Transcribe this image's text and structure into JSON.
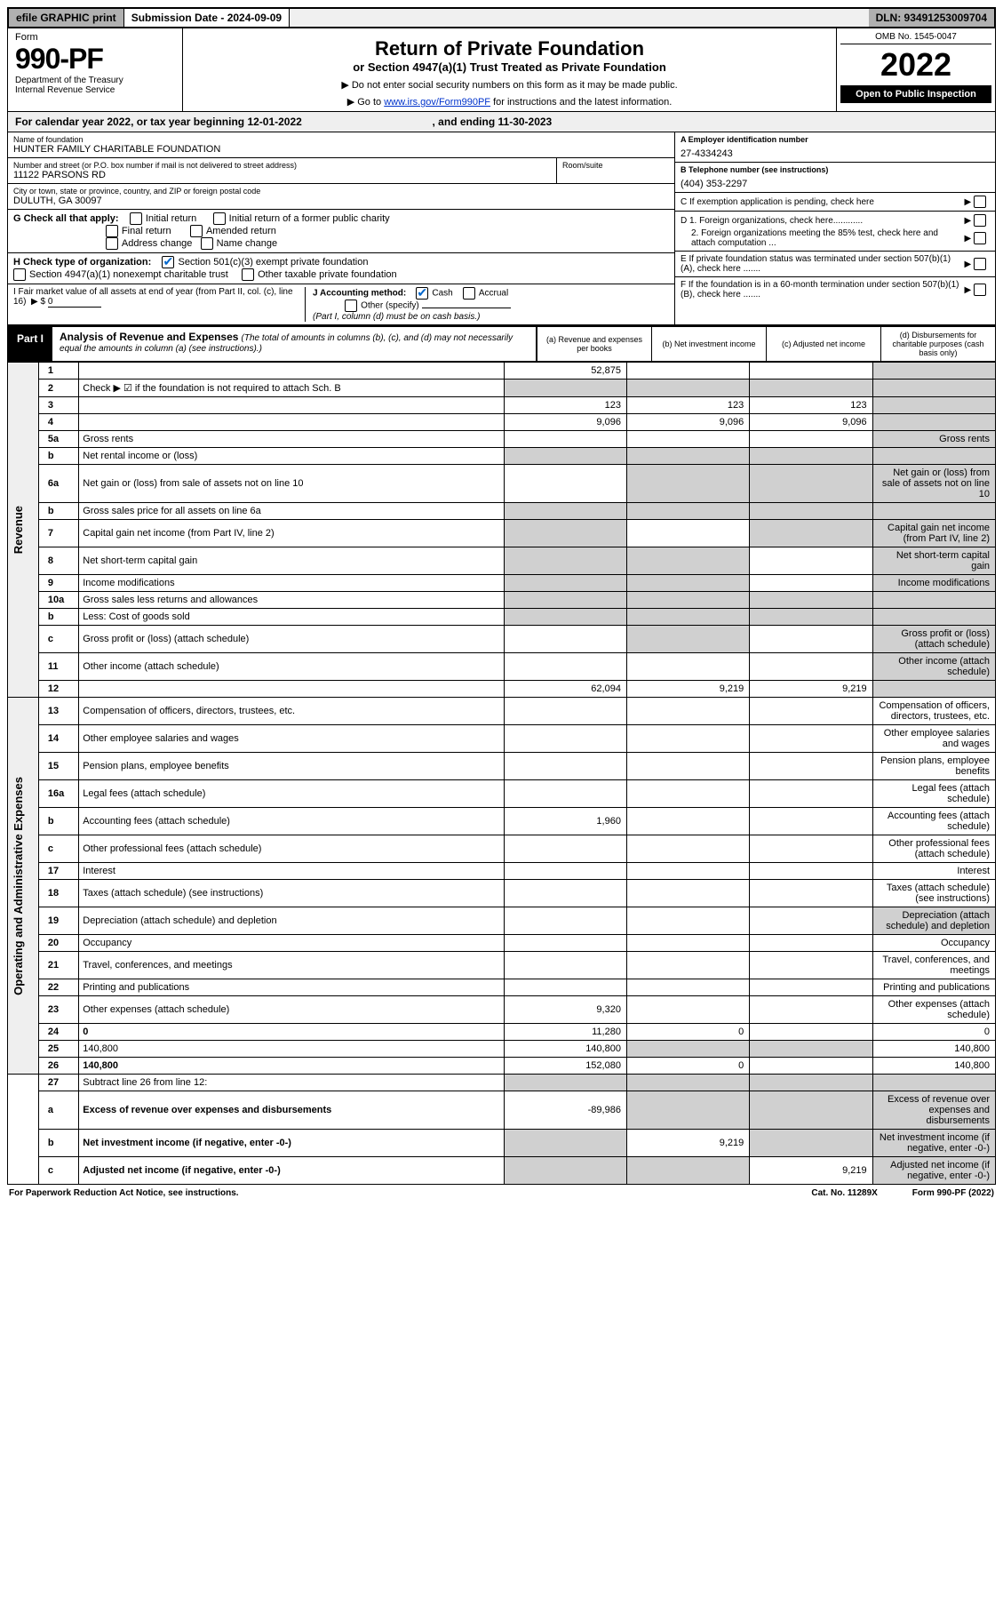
{
  "topbar": {
    "efile": "efile GRAPHIC print",
    "submission": "Submission Date - 2024-09-09",
    "dln": "DLN: 93491253009704"
  },
  "header": {
    "form_label": "Form",
    "form_number": "990-PF",
    "dept1": "Department of the Treasury",
    "dept2": "Internal Revenue Service",
    "title": "Return of Private Foundation",
    "subtitle": "or Section 4947(a)(1) Trust Treated as Private Foundation",
    "inst1": "▶ Do not enter social security numbers on this form as it may be made public.",
    "inst2_pre": "▶ Go to ",
    "inst2_link": "www.irs.gov/Form990PF",
    "inst2_post": " for instructions and the latest information.",
    "omb": "OMB No. 1545-0047",
    "year": "2022",
    "open": "Open to Public Inspection"
  },
  "cal_year": {
    "pre": "For calendar year 2022, or tax year beginning 12-01-2022",
    "mid": ", and ending 11-30-2023"
  },
  "info": {
    "name_lbl": "Name of foundation",
    "name_val": "HUNTER FAMILY CHARITABLE FOUNDATION",
    "addr_lbl": "Number and street (or P.O. box number if mail is not delivered to street address)",
    "addr_val": "11122 PARSONS RD",
    "room_lbl": "Room/suite",
    "city_lbl": "City or town, state or province, country, and ZIP or foreign postal code",
    "city_val": "DULUTH, GA  30097",
    "ein_lbl": "A Employer identification number",
    "ein_val": "27-4334243",
    "phone_lbl": "B Telephone number (see instructions)",
    "phone_val": "(404) 353-2297",
    "c_lbl": "C If exemption application is pending, check here",
    "d1": "D 1. Foreign organizations, check here............",
    "d2": "2. Foreign organizations meeting the 85% test, check here and attach computation ...",
    "e_lbl": "E  If private foundation status was terminated under section 507(b)(1)(A), check here .......",
    "f_lbl": "F  If the foundation is in a 60-month termination under section 507(b)(1)(B), check here .......",
    "g_lbl": "G Check all that apply:",
    "g_opts": [
      "Initial return",
      "Final return",
      "Address change",
      "Initial return of a former public charity",
      "Amended return",
      "Name change"
    ],
    "h_lbl": "H Check type of organization:",
    "h1": "Section 501(c)(3) exempt private foundation",
    "h2": "Section 4947(a)(1) nonexempt charitable trust",
    "h3": "Other taxable private foundation",
    "i_lbl": "I Fair market value of all assets at end of year (from Part II, col. (c), line 16)",
    "i_val": "0",
    "j_lbl": "J Accounting method:",
    "j_cash": "Cash",
    "j_accrual": "Accrual",
    "j_other": "Other (specify)",
    "j_note": "(Part I, column (d) must be on cash basis.)"
  },
  "part1": {
    "label": "Part I",
    "title": "Analysis of Revenue and Expenses",
    "title_note": "(The total of amounts in columns (b), (c), and (d) may not necessarily equal the amounts in column (a) (see instructions).)",
    "cols": {
      "a": "(a)   Revenue and expenses per books",
      "b": "(b)   Net investment income",
      "c": "(c)   Adjusted net income",
      "d": "(d)  Disbursements for charitable purposes (cash basis only)"
    }
  },
  "sections": {
    "revenue": "Revenue",
    "opex": "Operating and Administrative Expenses"
  },
  "rows": [
    {
      "n": "1",
      "d": "",
      "a": "52,875",
      "b": "",
      "c": "",
      "d_shade": true
    },
    {
      "n": "2",
      "d": "Check ▶ ☑ if the foundation is not required to attach Sch. B",
      "noamt": true
    },
    {
      "n": "3",
      "d": "",
      "a": "123",
      "b": "123",
      "c": "123",
      "d_shade": true
    },
    {
      "n": "4",
      "d": "",
      "a": "9,096",
      "b": "9,096",
      "c": "9,096",
      "d_shade": true
    },
    {
      "n": "5a",
      "d": "Gross rents",
      "d_shade": true
    },
    {
      "n": "b",
      "d": "Net rental income or (loss)",
      "all_shade": true
    },
    {
      "n": "6a",
      "d": "Net gain or (loss) from sale of assets not on line 10",
      "b_shade": true,
      "c_shade": true,
      "d_shade": true
    },
    {
      "n": "b",
      "d": "Gross sales price for all assets on line 6a",
      "all_shade": true
    },
    {
      "n": "7",
      "d": "Capital gain net income (from Part IV, line 2)",
      "a_shade": true,
      "c_shade": true,
      "d_shade": true
    },
    {
      "n": "8",
      "d": "Net short-term capital gain",
      "a_shade": true,
      "b_shade": true,
      "d_shade": true
    },
    {
      "n": "9",
      "d": "Income modifications",
      "a_shade": true,
      "b_shade": true,
      "d_shade": true
    },
    {
      "n": "10a",
      "d": "Gross sales less returns and allowances",
      "all_shade": true
    },
    {
      "n": "b",
      "d": "Less: Cost of goods sold",
      "all_shade": true
    },
    {
      "n": "c",
      "d": "Gross profit or (loss) (attach schedule)",
      "b_shade": true,
      "d_shade": true
    },
    {
      "n": "11",
      "d": "Other income (attach schedule)",
      "d_shade": true
    },
    {
      "n": "12",
      "d": "",
      "bold": true,
      "a": "62,094",
      "b": "9,219",
      "c": "9,219",
      "d_shade": true
    }
  ],
  "rows2": [
    {
      "n": "13",
      "d": "Compensation of officers, directors, trustees, etc."
    },
    {
      "n": "14",
      "d": "Other employee salaries and wages"
    },
    {
      "n": "15",
      "d": "Pension plans, employee benefits"
    },
    {
      "n": "16a",
      "d": "Legal fees (attach schedule)"
    },
    {
      "n": "b",
      "d": "Accounting fees (attach schedule)",
      "a": "1,960"
    },
    {
      "n": "c",
      "d": "Other professional fees (attach schedule)"
    },
    {
      "n": "17",
      "d": "Interest"
    },
    {
      "n": "18",
      "d": "Taxes (attach schedule) (see instructions)"
    },
    {
      "n": "19",
      "d": "Depreciation (attach schedule) and depletion",
      "d_shade": true
    },
    {
      "n": "20",
      "d": "Occupancy"
    },
    {
      "n": "21",
      "d": "Travel, conferences, and meetings"
    },
    {
      "n": "22",
      "d": "Printing and publications"
    },
    {
      "n": "23",
      "d": "Other expenses (attach schedule)",
      "a": "9,320"
    },
    {
      "n": "24",
      "d": "0",
      "bold": true,
      "a": "11,280",
      "b": "0",
      "c": ""
    },
    {
      "n": "25",
      "d": "140,800",
      "a": "140,800",
      "b_shade": true,
      "c_shade": true
    },
    {
      "n": "26",
      "d": "140,800",
      "bold": true,
      "a": "152,080",
      "b": "0",
      "c": ""
    }
  ],
  "rows3": [
    {
      "n": "27",
      "d": "Subtract line 26 from line 12:",
      "all_shade": true
    },
    {
      "n": "a",
      "d": "Excess of revenue over expenses and disbursements",
      "bold": true,
      "a": "-89,986",
      "b_shade": true,
      "c_shade": true,
      "d_shade": true
    },
    {
      "n": "b",
      "d": "Net investment income (if negative, enter -0-)",
      "bold": true,
      "a_shade": true,
      "b": "9,219",
      "c_shade": true,
      "d_shade": true
    },
    {
      "n": "c",
      "d": "Adjusted net income (if negative, enter -0-)",
      "bold": true,
      "a_shade": true,
      "b_shade": true,
      "c": "9,219",
      "d_shade": true
    }
  ],
  "footer": {
    "left": "For Paperwork Reduction Act Notice, see instructions.",
    "mid": "Cat. No. 11289X",
    "right": "Form 990-PF (2022)"
  }
}
